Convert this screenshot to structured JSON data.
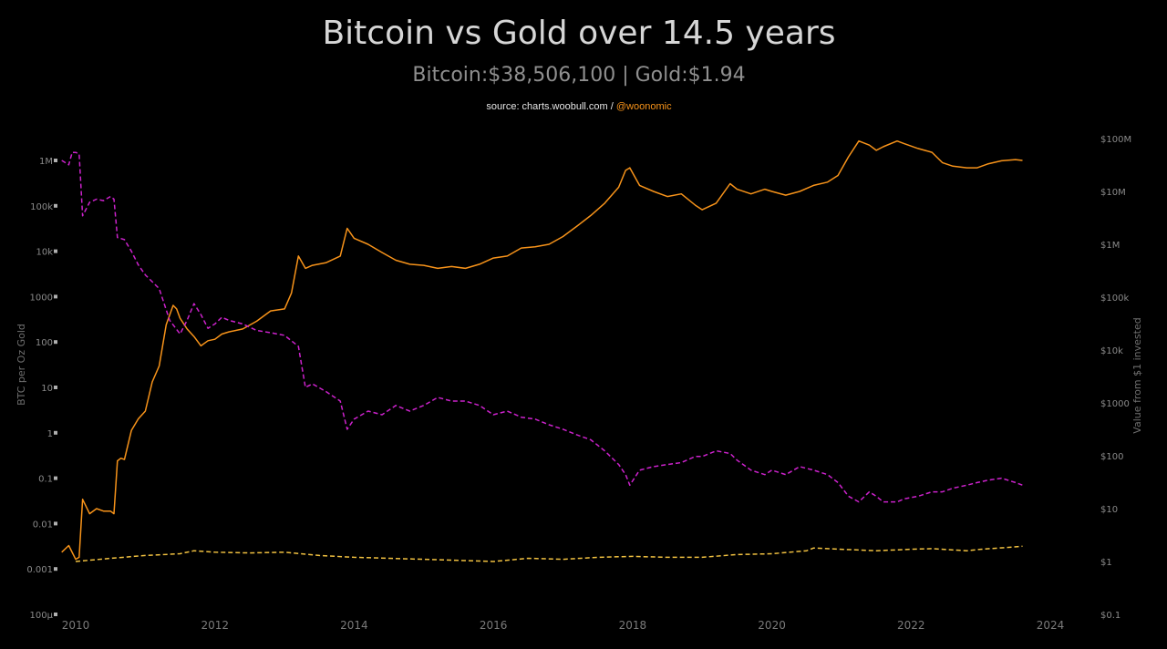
{
  "header": {
    "title": "Bitcoin vs Gold over 14.5 years",
    "subtitle": "Bitcoin:$38,506,100 | Gold:$1.94",
    "source_prefix": "source: charts.woobull.com / ",
    "source_handle": "@woonomic"
  },
  "colors": {
    "background": "#000000",
    "bitcoin": "#f7931a",
    "gold": "#f0c040",
    "ratio": "#cc22cc"
  },
  "chart_data": {
    "type": "line",
    "title": "Bitcoin vs Gold over 14.5 years",
    "subtitle": "Bitcoin:$38,506,100 | Gold:$1.94",
    "grid": false,
    "xlim": [
      2009.7,
      2024.2
    ],
    "x_ticks": [
      "2010",
      "2012",
      "2014",
      "2016",
      "2018",
      "2020",
      "2022",
      "2024"
    ],
    "y_left": {
      "label": "BTC per Oz Gold",
      "scale": "log",
      "lim": [
        0.0001,
        3000000
      ],
      "ticks": [
        0.0001,
        0.001,
        0.01,
        0.1,
        1,
        10,
        100,
        1000,
        10000,
        100000,
        1000000
      ],
      "tick_labels": [
        "100μ",
        "0.001",
        "0.01",
        "0.1",
        "1",
        "10",
        "100",
        "1000",
        "10k",
        "100k",
        "1M"
      ]
    },
    "y_right": {
      "label": "Value from $1 invested",
      "scale": "log",
      "lim": [
        0.1,
        100000000
      ],
      "ticks": [
        0.1,
        1,
        10,
        100,
        1000,
        10000,
        100000,
        1000000,
        10000000,
        100000000
      ],
      "tick_labels": [
        "$0.1",
        "$1",
        "$10",
        "$100",
        "$1000",
        "$10k",
        "$100k",
        "$1M",
        "$10M",
        "$100M"
      ]
    },
    "series": [
      {
        "name": "Bitcoin",
        "axis": "right",
        "style": "solid",
        "color": "#f7931a",
        "x": [
          2009.8,
          2009.9,
          2010.0,
          2010.05,
          2010.1,
          2010.2,
          2010.3,
          2010.4,
          2010.5,
          2010.55,
          2010.6,
          2010.65,
          2010.7,
          2010.8,
          2010.9,
          2011.0,
          2011.1,
          2011.2,
          2011.3,
          2011.4,
          2011.45,
          2011.5,
          2011.6,
          2011.7,
          2011.8,
          2011.9,
          2012.0,
          2012.1,
          2012.2,
          2012.4,
          2012.6,
          2012.8,
          2013.0,
          2013.1,
          2013.2,
          2013.3,
          2013.4,
          2013.6,
          2013.8,
          2013.9,
          2014.0,
          2014.2,
          2014.4,
          2014.6,
          2014.8,
          2015.0,
          2015.2,
          2015.4,
          2015.6,
          2015.8,
          2016.0,
          2016.2,
          2016.4,
          2016.6,
          2016.8,
          2017.0,
          2017.2,
          2017.4,
          2017.6,
          2017.8,
          2017.9,
          2017.96,
          2018.1,
          2018.3,
          2018.5,
          2018.7,
          2018.9,
          2019.0,
          2019.2,
          2019.4,
          2019.5,
          2019.7,
          2019.9,
          2020.0,
          2020.2,
          2020.4,
          2020.6,
          2020.8,
          2020.95,
          2021.1,
          2021.25,
          2021.4,
          2021.5,
          2021.6,
          2021.8,
          2021.9,
          2022.1,
          2022.3,
          2022.45,
          2022.6,
          2022.8,
          2022.95,
          2023.1,
          2023.3,
          2023.5,
          2023.6
        ],
        "y": [
          1.5,
          2,
          1.1,
          1.2,
          15,
          8,
          10,
          9,
          9,
          8,
          80,
          90,
          85,
          300,
          500,
          700,
          2500,
          5000,
          30000,
          70000,
          60000,
          40000,
          25000,
          18000,
          12000,
          15000,
          16000,
          20000,
          22000,
          25000,
          35000,
          55000,
          60000,
          120000,
          600000,
          350000,
          400000,
          450000,
          600000,
          2000000,
          1300000,
          1000000,
          700000,
          500000,
          420000,
          400000,
          350000,
          380000,
          350000,
          420000,
          550000,
          600000,
          850000,
          900000,
          1000000,
          1400000,
          2200000,
          3500000,
          6000000,
          12000000,
          25000000,
          28000000,
          13000000,
          10000000,
          8000000,
          9000000,
          5500000,
          4500000,
          6000000,
          14000000,
          11000000,
          9000000,
          11000000,
          10000000,
          8500000,
          10000000,
          13000000,
          15000000,
          20000000,
          45000000,
          90000000,
          75000000,
          60000000,
          70000000,
          90000000,
          80000000,
          65000000,
          55000000,
          35000000,
          30000000,
          28000000,
          28000000,
          33000000,
          38000000,
          40000000,
          38500000
        ]
      },
      {
        "name": "Gold",
        "axis": "right",
        "style": "dashed",
        "color": "#f0c040",
        "x": [
          2010.0,
          2010.5,
          2011.0,
          2011.5,
          2011.7,
          2012.0,
          2012.5,
          2013.0,
          2013.5,
          2014.0,
          2014.5,
          2015.0,
          2015.5,
          2016.0,
          2016.5,
          2017.0,
          2017.5,
          2018.0,
          2018.5,
          2019.0,
          2019.5,
          2020.0,
          2020.5,
          2020.6,
          2021.0,
          2021.5,
          2022.0,
          2022.3,
          2022.8,
          2023.0,
          2023.4,
          2023.6
        ],
        "y": [
          1.0,
          1.15,
          1.3,
          1.4,
          1.6,
          1.5,
          1.45,
          1.5,
          1.3,
          1.2,
          1.15,
          1.1,
          1.05,
          1.0,
          1.15,
          1.1,
          1.2,
          1.25,
          1.2,
          1.2,
          1.35,
          1.4,
          1.6,
          1.8,
          1.7,
          1.6,
          1.7,
          1.75,
          1.6,
          1.7,
          1.85,
          1.94
        ]
      },
      {
        "name": "BTC per Oz Gold",
        "axis": "left",
        "style": "dashed",
        "color": "#cc22cc",
        "x": [
          2009.8,
          2009.9,
          2009.95,
          2010.0,
          2010.05,
          2010.1,
          2010.2,
          2010.3,
          2010.4,
          2010.5,
          2010.55,
          2010.6,
          2010.7,
          2010.8,
          2010.9,
          2011.0,
          2011.2,
          2011.35,
          2011.5,
          2011.6,
          2011.7,
          2011.8,
          2011.9,
          2012.0,
          2012.1,
          2012.2,
          2012.4,
          2012.6,
          2012.8,
          2013.0,
          2013.2,
          2013.3,
          2013.4,
          2013.6,
          2013.8,
          2013.9,
          2014.0,
          2014.2,
          2014.4,
          2014.6,
          2014.8,
          2015.0,
          2015.2,
          2015.4,
          2015.6,
          2015.8,
          2016.0,
          2016.2,
          2016.4,
          2016.6,
          2016.8,
          2017.0,
          2017.2,
          2017.4,
          2017.6,
          2017.8,
          2017.9,
          2017.96,
          2018.1,
          2018.3,
          2018.5,
          2018.7,
          2018.9,
          2019.0,
          2019.2,
          2019.4,
          2019.5,
          2019.7,
          2019.9,
          2020.0,
          2020.2,
          2020.4,
          2020.6,
          2020.8,
          2020.95,
          2021.1,
          2021.25,
          2021.4,
          2021.5,
          2021.6,
          2021.8,
          2021.9,
          2022.1,
          2022.3,
          2022.45,
          2022.6,
          2022.8,
          2022.95,
          2023.1,
          2023.3,
          2023.5,
          2023.6
        ],
        "y": [
          1000000,
          800000,
          1500000,
          1500000,
          1400000,
          60000,
          120000,
          140000,
          130000,
          160000,
          140000,
          20000,
          18000,
          10000,
          5000,
          3000,
          1500,
          300,
          150,
          300,
          700,
          400,
          200,
          250,
          350,
          300,
          250,
          180,
          160,
          140,
          80,
          10,
          12,
          8,
          5,
          1.2,
          2,
          3,
          2.5,
          4,
          3,
          4,
          6,
          5,
          5,
          4,
          2.5,
          3,
          2.2,
          2,
          1.5,
          1.2,
          0.9,
          0.7,
          0.4,
          0.2,
          0.12,
          0.07,
          0.15,
          0.18,
          0.2,
          0.22,
          0.3,
          0.3,
          0.4,
          0.35,
          0.25,
          0.15,
          0.12,
          0.15,
          0.12,
          0.18,
          0.15,
          0.12,
          0.08,
          0.04,
          0.03,
          0.05,
          0.04,
          0.03,
          0.03,
          0.035,
          0.04,
          0.05,
          0.05,
          0.06,
          0.07,
          0.08,
          0.09,
          0.1,
          0.08,
          0.07
        ]
      }
    ]
  }
}
